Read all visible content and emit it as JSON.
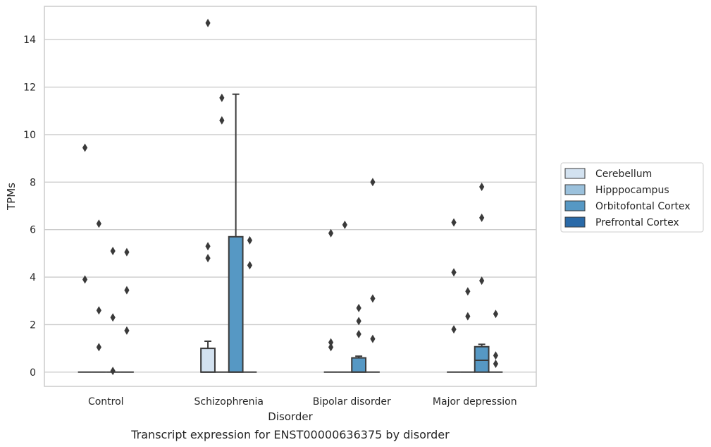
{
  "chart_data": {
    "type": "boxplot",
    "caption": "Transcript expression for ENST00000636375 by disorder",
    "xlabel": "Disorder",
    "ylabel": "TPMs",
    "ylim": [
      -0.6,
      15.4
    ],
    "yticks": [
      0,
      2,
      4,
      6,
      8,
      10,
      12,
      14
    ],
    "grid": "horizontal",
    "legend_position": "right",
    "categories": [
      "Control",
      "Schizophrenia",
      "Bipolar disorder",
      "Major depression"
    ],
    "series": [
      {
        "name": "Cerebellum",
        "color": "#d3e2f0",
        "boxes": [
          {
            "q1": 0,
            "median": 0,
            "q3": 0,
            "whisker_low": 0,
            "whisker_high": 0,
            "outliers": [
              9.45,
              3.9
            ]
          },
          {
            "q1": 0,
            "median": 0,
            "q3": 1.0,
            "whisker_low": 0,
            "whisker_high": 1.3,
            "outliers": [
              14.7,
              5.3,
              4.8
            ]
          },
          {
            "q1": 0,
            "median": 0,
            "q3": 0,
            "whisker_low": 0,
            "whisker_high": 0,
            "outliers": [
              5.85,
              1.25,
              1.05
            ]
          },
          {
            "q1": 0,
            "median": 0,
            "q3": 0,
            "whisker_low": 0,
            "whisker_high": 0,
            "outliers": [
              6.3,
              4.2,
              1.8
            ]
          }
        ]
      },
      {
        "name": "Hipppocampus",
        "color": "#9bc1dc",
        "boxes": [
          {
            "q1": 0,
            "median": 0,
            "q3": 0,
            "whisker_low": 0,
            "whisker_high": 0,
            "outliers": [
              6.25,
              2.6,
              1.05
            ]
          },
          {
            "q1": 0,
            "median": 0,
            "q3": 0,
            "whisker_low": 0,
            "whisker_high": 0,
            "outliers": [
              11.55,
              10.6
            ]
          },
          {
            "q1": 0,
            "median": 0,
            "q3": 0,
            "whisker_low": 0,
            "whisker_high": 0,
            "outliers": [
              6.2
            ]
          },
          {
            "q1": 0,
            "median": 0,
            "q3": 0,
            "whisker_low": 0,
            "whisker_high": 0,
            "outliers": [
              3.4,
              2.35
            ]
          }
        ]
      },
      {
        "name": "Orbitofontal Cortex",
        "color": "#5698c4",
        "boxes": [
          {
            "q1": 0,
            "median": 0,
            "q3": 0,
            "whisker_low": 0,
            "whisker_high": 0,
            "outliers": [
              5.1,
              2.3,
              0.05
            ]
          },
          {
            "q1": 0,
            "median": 0,
            "q3": 5.7,
            "whisker_low": 0,
            "whisker_high": 11.7,
            "outliers": []
          },
          {
            "q1": 0,
            "median": 0,
            "q3": 0.6,
            "whisker_low": 0,
            "whisker_high": 0.67,
            "outliers": [
              2.7,
              2.15,
              1.6
            ]
          },
          {
            "q1": 0,
            "median": 0.5,
            "q3": 1.07,
            "whisker_low": 0,
            "whisker_high": 1.17,
            "outliers": [
              7.8,
              6.5,
              3.85
            ]
          }
        ]
      },
      {
        "name": "Prefrontal Cortex",
        "color": "#2a6aa8",
        "boxes": [
          {
            "q1": 0,
            "median": 0,
            "q3": 0,
            "whisker_low": 0,
            "whisker_high": 0,
            "outliers": [
              5.05,
              3.45,
              1.75
            ]
          },
          {
            "q1": 0,
            "median": 0,
            "q3": 0,
            "whisker_low": 0,
            "whisker_high": 0,
            "outliers": [
              5.55,
              4.5
            ]
          },
          {
            "q1": 0,
            "median": 0,
            "q3": 0,
            "whisker_low": 0,
            "whisker_high": 0,
            "outliers": [
              8.0,
              3.1,
              1.4
            ]
          },
          {
            "q1": 0,
            "median": 0,
            "q3": 0,
            "whisker_low": 0,
            "whisker_high": 0,
            "outliers": [
              2.45,
              0.7,
              0.35
            ]
          }
        ]
      }
    ]
  }
}
